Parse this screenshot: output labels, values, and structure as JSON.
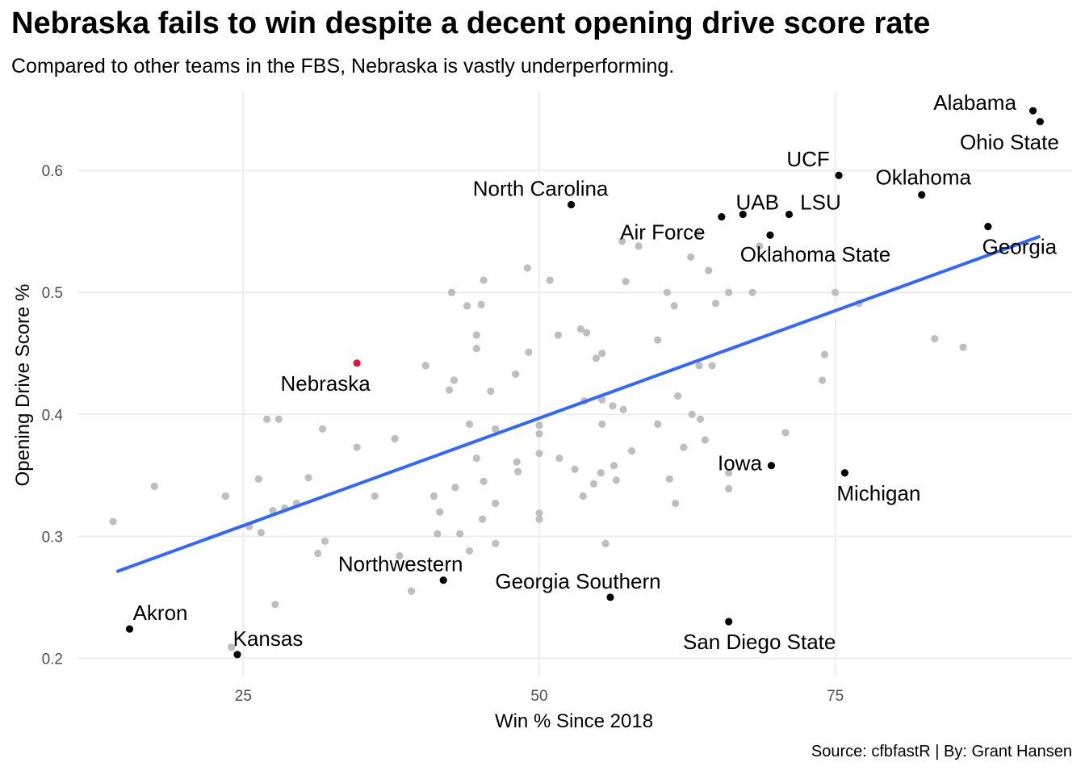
{
  "chart_data": {
    "type": "scatter",
    "title": "Nebraska fails to win despite a decent opening drive score rate",
    "subtitle": "Compared to other teams in the FBS, Nebraska is vastly underperforming.",
    "caption": "Source: cfbfastR | By: Grant Hansen",
    "xlabel": "Win % Since 2018",
    "ylabel": "Opening Drive Score %",
    "xlim": [
      11,
      95
    ],
    "ylim": [
      0.185,
      0.665
    ],
    "xticks": [
      25,
      50,
      75
    ],
    "yticks": [
      0.2,
      0.3,
      0.4,
      0.5,
      0.6
    ],
    "ytick_labels": [
      "0.2",
      "0.3",
      "0.4",
      "0.5",
      "0.6"
    ],
    "grid": true,
    "colors": {
      "background": "#ffffff",
      "grid": "#ebebeb",
      "other_teams": "#bebebe",
      "labeled_teams": "#000000",
      "highlight": "#dc143c",
      "trend_line": "#3366ff"
    },
    "trend_line": {
      "x": [
        14.3,
        92.3
      ],
      "y": [
        0.271,
        0.546
      ]
    },
    "labeled_teams": [
      {
        "name": "Alabama",
        "x": 91.7,
        "y": 0.649
      },
      {
        "name": "Ohio State",
        "x": 92.3,
        "y": 0.64
      },
      {
        "name": "UCF",
        "x": 75.3,
        "y": 0.596
      },
      {
        "name": "North Carolina",
        "x": 52.7,
        "y": 0.572
      },
      {
        "name": "UAB",
        "x": 67.2,
        "y": 0.564
      },
      {
        "name": "LSU",
        "x": 71.1,
        "y": 0.564
      },
      {
        "name": "Air Force",
        "x": 65.4,
        "y": 0.562
      },
      {
        "name": "Oklahoma",
        "x": 82.3,
        "y": 0.58
      },
      {
        "name": "Oklahoma State",
        "x": 69.5,
        "y": 0.547
      },
      {
        "name": "Georgia",
        "x": 87.9,
        "y": 0.554
      },
      {
        "name": "Nebraska",
        "x": 34.6,
        "y": 0.442,
        "highlight": true
      },
      {
        "name": "Iowa",
        "x": 69.6,
        "y": 0.358
      },
      {
        "name": "Michigan",
        "x": 75.8,
        "y": 0.352
      },
      {
        "name": "Northwestern",
        "x": 41.9,
        "y": 0.264
      },
      {
        "name": "Georgia Southern",
        "x": 56.0,
        "y": 0.25
      },
      {
        "name": "San Diego State",
        "x": 66.0,
        "y": 0.23
      },
      {
        "name": "Akron",
        "x": 15.4,
        "y": 0.224
      },
      {
        "name": "Kansas",
        "x": 24.5,
        "y": 0.203
      }
    ],
    "other_teams": [
      [
        14.0,
        0.312
      ],
      [
        17.5,
        0.341
      ],
      [
        23.5,
        0.333
      ],
      [
        24.0,
        0.209
      ],
      [
        25.5,
        0.308
      ],
      [
        26.3,
        0.347
      ],
      [
        26.5,
        0.303
      ],
      [
        27.0,
        0.396
      ],
      [
        27.5,
        0.321
      ],
      [
        27.7,
        0.244
      ],
      [
        28.0,
        0.396
      ],
      [
        28.5,
        0.323
      ],
      [
        29.5,
        0.327
      ],
      [
        30.5,
        0.348
      ],
      [
        31.3,
        0.286
      ],
      [
        31.7,
        0.388
      ],
      [
        31.9,
        0.296
      ],
      [
        34.6,
        0.373
      ],
      [
        36.1,
        0.333
      ],
      [
        37.8,
        0.38
      ],
      [
        38.2,
        0.284
      ],
      [
        39.2,
        0.255
      ],
      [
        40.4,
        0.44
      ],
      [
        41.1,
        0.333
      ],
      [
        41.4,
        0.302
      ],
      [
        41.6,
        0.32
      ],
      [
        42.4,
        0.42
      ],
      [
        42.6,
        0.5
      ],
      [
        42.8,
        0.428
      ],
      [
        42.9,
        0.34
      ],
      [
        43.3,
        0.302
      ],
      [
        43.9,
        0.489
      ],
      [
        44.1,
        0.392
      ],
      [
        44.1,
        0.288
      ],
      [
        44.7,
        0.465
      ],
      [
        44.7,
        0.454
      ],
      [
        44.7,
        0.364
      ],
      [
        45.1,
        0.49
      ],
      [
        45.3,
        0.51
      ],
      [
        45.3,
        0.345
      ],
      [
        45.2,
        0.314
      ],
      [
        45.9,
        0.419
      ],
      [
        46.3,
        0.388
      ],
      [
        46.3,
        0.327
      ],
      [
        46.3,
        0.294
      ],
      [
        48.0,
        0.433
      ],
      [
        48.1,
        0.361
      ],
      [
        48.2,
        0.353
      ],
      [
        49.0,
        0.52
      ],
      [
        49.1,
        0.451
      ],
      [
        50.0,
        0.391
      ],
      [
        50.0,
        0.384
      ],
      [
        50.0,
        0.368
      ],
      [
        50.0,
        0.319
      ],
      [
        50.0,
        0.314
      ],
      [
        50.9,
        0.51
      ],
      [
        51.6,
        0.465
      ],
      [
        51.7,
        0.364
      ],
      [
        53.0,
        0.355
      ],
      [
        53.5,
        0.47
      ],
      [
        53.8,
        0.411
      ],
      [
        53.7,
        0.333
      ],
      [
        54.0,
        0.467
      ],
      [
        54.6,
        0.343
      ],
      [
        54.8,
        0.446
      ],
      [
        55.2,
        0.352
      ],
      [
        55.3,
        0.45
      ],
      [
        55.3,
        0.412
      ],
      [
        55.3,
        0.392
      ],
      [
        55.6,
        0.294
      ],
      [
        56.2,
        0.407
      ],
      [
        56.3,
        0.358
      ],
      [
        56.5,
        0.346
      ],
      [
        57.0,
        0.542
      ],
      [
        57.1,
        0.404
      ],
      [
        57.3,
        0.509
      ],
      [
        57.8,
        0.37
      ],
      [
        58.4,
        0.538
      ],
      [
        60.0,
        0.461
      ],
      [
        60.0,
        0.392
      ],
      [
        60.8,
        0.5
      ],
      [
        61.0,
        0.347
      ],
      [
        61.4,
        0.489
      ],
      [
        61.5,
        0.327
      ],
      [
        61.7,
        0.415
      ],
      [
        62.2,
        0.373
      ],
      [
        62.8,
        0.529
      ],
      [
        62.9,
        0.4
      ],
      [
        63.4,
        0.548
      ],
      [
        63.5,
        0.44
      ],
      [
        63.6,
        0.396
      ],
      [
        64.0,
        0.379
      ],
      [
        64.3,
        0.518
      ],
      [
        64.6,
        0.44
      ],
      [
        64.9,
        0.491
      ],
      [
        66.0,
        0.5
      ],
      [
        66.0,
        0.352
      ],
      [
        66.0,
        0.339
      ],
      [
        68.0,
        0.5
      ],
      [
        68.6,
        0.538
      ],
      [
        70.8,
        0.385
      ],
      [
        73.9,
        0.428
      ],
      [
        74.1,
        0.449
      ],
      [
        75.0,
        0.5
      ],
      [
        77.0,
        0.491
      ],
      [
        83.4,
        0.462
      ],
      [
        85.8,
        0.455
      ]
    ]
  }
}
